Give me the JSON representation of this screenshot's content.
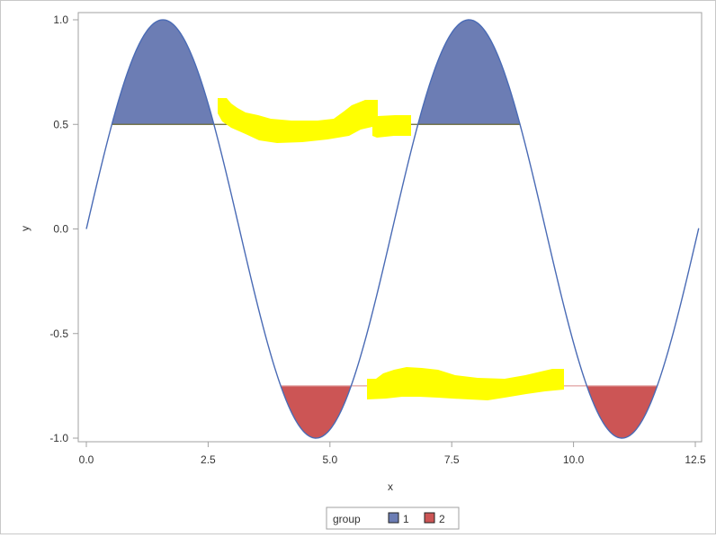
{
  "chart_data": {
    "type": "line",
    "title": "",
    "xlabel": "x",
    "ylabel": "y",
    "xlim": [
      0,
      12.5
    ],
    "ylim": [
      -1.0,
      1.0
    ],
    "xticks": [
      0.0,
      2.5,
      5.0,
      7.5,
      10.0,
      12.5
    ],
    "xtick_labels": [
      "0.0",
      "2.5",
      "5.0",
      "7.5",
      "10.0",
      "12.5"
    ],
    "yticks": [
      -1.0,
      -0.5,
      0.0,
      0.5,
      1.0
    ],
    "ytick_labels": [
      "-1.0",
      "-0.5",
      "0.0",
      "0.5",
      "1.0"
    ],
    "grid": false,
    "curve": {
      "function": "sin",
      "x_range": [
        0,
        12.57
      ],
      "color": "#4a6bb5"
    },
    "bands": [
      {
        "group": "1",
        "threshold": 0.5,
        "side": "above",
        "intervals": [
          [
            0.524,
            2.618
          ],
          [
            6.807,
            8.901
          ]
        ],
        "color": "#6c7db4"
      },
      {
        "group": "2",
        "threshold": -0.75,
        "side": "below",
        "intervals": [
          [
            4.0,
            5.42
          ],
          [
            10.29,
            11.71
          ]
        ],
        "color": "#cc5555"
      }
    ],
    "reference_lines": [
      {
        "y": 0.5,
        "x_range": [
          0.524,
          8.901
        ],
        "color": "#666633"
      },
      {
        "y": -0.75,
        "x_range": [
          4.0,
          11.71
        ],
        "color": "#e0a0a0"
      }
    ],
    "legend": {
      "title": "group",
      "placement": "bottom-center",
      "entries": [
        {
          "label": "1",
          "color": "#6c7db4"
        },
        {
          "label": "2",
          "color": "#cc5555"
        }
      ]
    },
    "highlight_color": "#ffff00"
  }
}
